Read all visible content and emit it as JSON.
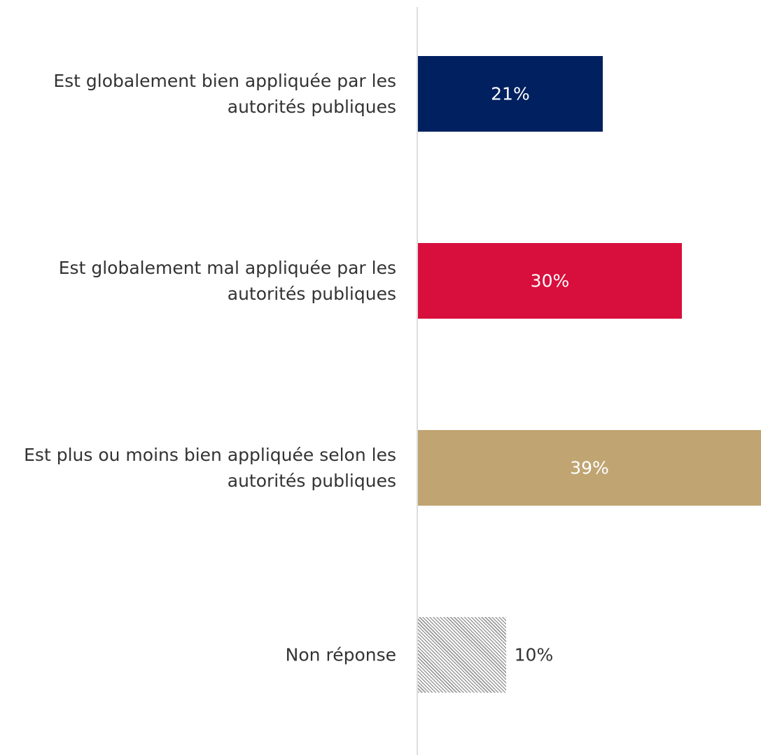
{
  "chart_data": {
    "type": "hbar",
    "categories": [
      "Est globalement bien appliquée par les autorités publiques",
      "Est globalement mal appliquée par les autorités publiques",
      "Est plus ou moins bien appliquée selon les autorités publiques",
      "Non réponse"
    ],
    "values": [
      21,
      30,
      39,
      10
    ],
    "value_labels": [
      "21%",
      "30%",
      "39%",
      "10%"
    ],
    "colors": [
      "#00205f",
      "#d80f3d",
      "#c0a573",
      "#9a9a9a"
    ],
    "hatched": [
      false,
      false,
      false,
      true
    ],
    "xlim": [
      0,
      39
    ]
  }
}
